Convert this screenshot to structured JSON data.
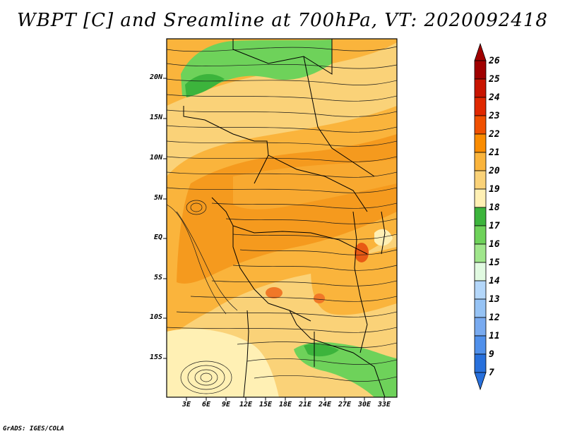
{
  "title": "WBPT [C] and Sreamline at 700hPa, VT: 2020092418",
  "map": {
    "variable": "WBPT [C]",
    "level": "700hPa",
    "valid_time": "2020092418",
    "lat_labels": [
      "20N",
      "15N",
      "10N",
      "5N",
      "EQ",
      "5S",
      "10S",
      "15S"
    ],
    "lon_labels": [
      "3E",
      "6E",
      "9E",
      "12E",
      "15E",
      "18E",
      "21E",
      "24E",
      "27E",
      "30E",
      "33E"
    ],
    "colorbar": {
      "labels": [
        "26",
        "25",
        "24",
        "23",
        "22",
        "21",
        "20",
        "19",
        "18",
        "17",
        "16",
        "15",
        "14",
        "13",
        "12",
        "11",
        "9",
        "7"
      ],
      "colors": [
        "#a00000",
        "#c81400",
        "#e02800",
        "#f05000",
        "#fa8c00",
        "#fab43c",
        "#fad278",
        "#fff0b4",
        "#3cb43c",
        "#6ed25a",
        "#a0e68c",
        "#e1fae1",
        "#b4d7fa",
        "#96c3f5",
        "#78aaf0",
        "#5090eb",
        "#2870dc"
      ],
      "top_arrow_color": "#a00000",
      "bottom_arrow_color": "#2870dc"
    }
  },
  "footer": "GrADS: IGES/COLA"
}
